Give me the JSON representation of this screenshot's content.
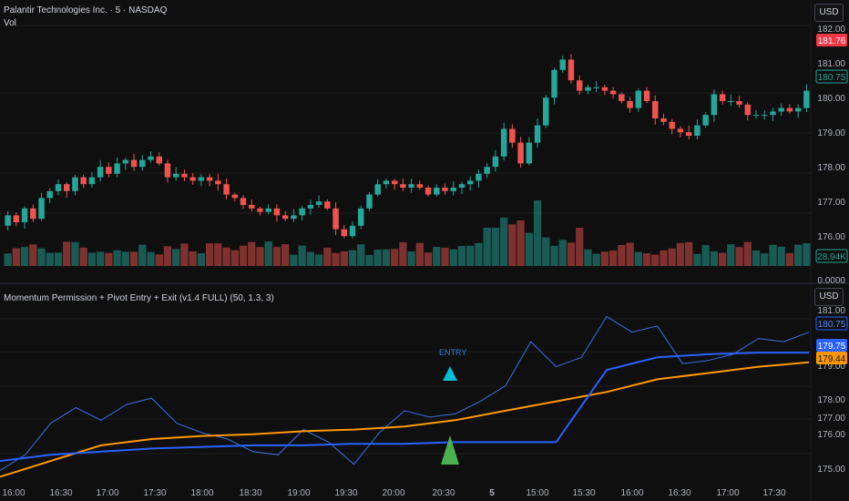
{
  "header": {
    "symbol_title": "Palantir Technologies Inc. · 5 · NASDAQ",
    "volume_label": "Vol",
    "currency_button": "USD"
  },
  "indicator": {
    "title": "Momentum Permission + Pivot Entry + Exit (v1.4 FULL) (50, 1.3, 3)",
    "currency_button": "USD",
    "entry_label": "ENTRY"
  },
  "price_axis": {
    "ticks": [
      "182.00",
      "181.00",
      "180.00",
      "179.00",
      "178.00",
      "177.00",
      "176.00",
      "0.0000"
    ],
    "last_price_tag": "181.76",
    "current_tag": "180.75",
    "volume_tag": "28.94K"
  },
  "indicator_axis": {
    "ticks": [
      "181.00",
      "180.00",
      "179.00",
      "178.00",
      "177.00",
      "176.00",
      "175.00"
    ],
    "tag_price": "180.75",
    "tag_blue": "179.75",
    "tag_orange": "179.44"
  },
  "time_axis": [
    "16:00",
    "16:30",
    "17:00",
    "17:30",
    "18:00",
    "18:30",
    "19:00",
    "19:30",
    "20:00",
    "20:30",
    "5",
    "15:00",
    "15:30",
    "16:00",
    "16:30",
    "17:00",
    "17:30"
  ],
  "colors": {
    "up": "#26a69a",
    "down": "#ef5350",
    "background": "#0f0f0f",
    "blue_line": "#2962ff",
    "orange_line": "#ff9800",
    "entry_marker": "#00bcd4",
    "arrow_marker": "#4caf50"
  },
  "chart_data": {
    "type": "candlestick",
    "price_range": [
      175.7,
      182.1
    ],
    "candles_close_path": [
      176.7,
      176.5,
      176.9,
      176.6,
      177.2,
      177.4,
      177.6,
      177.4,
      177.8,
      177.6,
      177.8,
      178.1,
      177.9,
      178.2,
      178.3,
      178.1,
      178.3,
      178.4,
      178.2,
      177.8,
      177.9,
      177.8,
      177.7,
      177.8,
      177.7,
      177.6,
      177.3,
      177.2,
      177.0,
      176.9,
      176.8,
      176.9,
      176.7,
      176.6,
      176.7,
      176.9,
      177.0,
      177.1,
      176.9,
      176.3,
      176.1,
      176.4,
      176.9,
      177.3,
      177.6,
      177.7,
      177.6,
      177.5,
      177.6,
      177.5,
      177.3,
      177.5,
      177.4,
      177.5,
      177.6,
      177.7,
      177.9,
      178.1,
      178.4,
      179.2,
      178.8,
      178.2,
      178.8,
      179.3,
      180.1,
      180.9,
      181.2,
      180.6,
      180.3,
      180.4,
      180.4,
      180.3,
      180.2,
      180.0,
      179.8,
      180.3,
      180.0,
      179.5,
      179.4,
      179.2,
      179.1,
      179.0,
      179.3,
      179.6,
      180.2,
      180.0,
      180.0,
      179.9,
      179.6,
      179.6,
      179.6,
      179.7,
      179.8,
      179.7,
      179.8,
      180.3
    ],
    "volume_range": [
      0,
      60
    ],
    "volume_last": "28.94K",
    "indicator_range": [
      174.8,
      181.3
    ],
    "series": [
      {
        "name": "",
        "color": "blue-thin",
        "values": [
          176.0,
          176.5,
          177.5,
          178.0,
          177.6,
          178.1,
          178.3,
          177.5,
          177.2,
          177.0,
          176.6,
          176.5,
          177.3,
          176.9,
          176.2,
          177.2,
          177.9,
          177.7,
          177.8,
          178.2,
          178.7,
          180.1,
          179.3,
          179.6,
          180.9,
          180.4,
          180.6,
          179.4,
          179.5,
          179.7,
          180.2,
          180.1,
          180.4
        ]
      },
      {
        "name": "",
        "color": "blue-thick",
        "values": [
          176.3,
          176.5,
          176.6,
          176.7,
          176.75,
          176.8,
          176.8,
          176.85,
          176.85,
          176.9,
          176.9,
          176.9,
          179.2,
          179.6,
          179.7,
          179.75,
          179.75
        ]
      },
      {
        "name": "",
        "color": "orange",
        "values": [
          175.8,
          176.3,
          176.8,
          177.0,
          177.1,
          177.15,
          177.25,
          177.3,
          177.4,
          177.6,
          177.9,
          178.2,
          178.5,
          178.9,
          179.1,
          179.3,
          179.44
        ]
      }
    ]
  }
}
